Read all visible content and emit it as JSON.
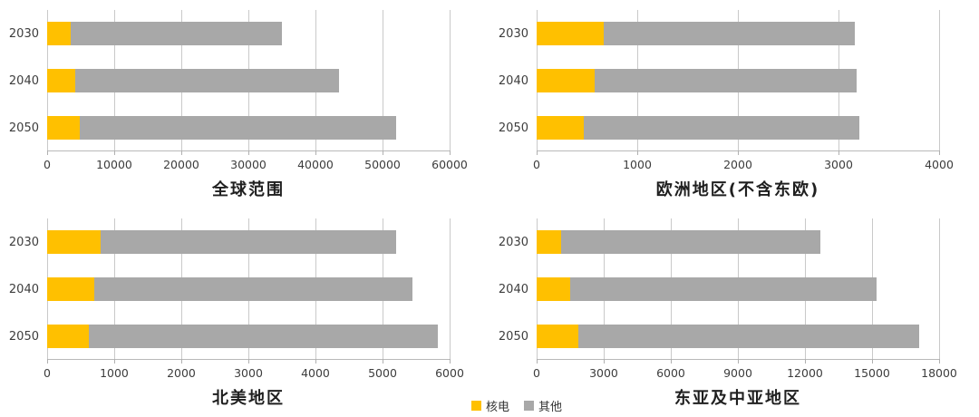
{
  "page": {
    "background": "#ffffff"
  },
  "legend": {
    "items": [
      {
        "key": "nuclear",
        "label": "核电",
        "color": "#FFC000"
      },
      {
        "key": "other",
        "label": "其他",
        "color": "#A8A8A8"
      }
    ]
  },
  "chart_data": [
    {
      "type": "bar",
      "orientation": "horizontal",
      "stacked": true,
      "title": "全球范围",
      "categories": [
        "2030",
        "2040",
        "2050"
      ],
      "series": [
        {
          "name": "核电",
          "key": "nuclear",
          "color": "#FFC000",
          "values": [
            3500,
            4200,
            4900
          ]
        },
        {
          "name": "其他",
          "key": "other",
          "color": "#A8A8A8",
          "values": [
            31500,
            39300,
            47100
          ]
        }
      ],
      "xlim": [
        0,
        60000
      ],
      "xticks": [
        0,
        10000,
        20000,
        30000,
        40000,
        50000,
        60000
      ],
      "grid": true
    },
    {
      "type": "bar",
      "orientation": "horizontal",
      "stacked": true,
      "title": "欧洲地区(不含东欧)",
      "categories": [
        "2030",
        "2040",
        "2050"
      ],
      "series": [
        {
          "name": "核电",
          "key": "nuclear",
          "color": "#FFC000",
          "values": [
            670,
            580,
            470
          ]
        },
        {
          "name": "其他",
          "key": "other",
          "color": "#A8A8A8",
          "values": [
            2490,
            2600,
            2740
          ]
        }
      ],
      "xlim": [
        0,
        4000
      ],
      "xticks": [
        0,
        1000,
        2000,
        3000,
        4000
      ],
      "grid": true
    },
    {
      "type": "bar",
      "orientation": "horizontal",
      "stacked": true,
      "title": "北美地区",
      "categories": [
        "2030",
        "2040",
        "2050"
      ],
      "series": [
        {
          "name": "核电",
          "key": "nuclear",
          "color": "#FFC000",
          "values": [
            800,
            700,
            620
          ]
        },
        {
          "name": "其他",
          "key": "other",
          "color": "#A8A8A8",
          "values": [
            4400,
            4750,
            5200
          ]
        }
      ],
      "xlim": [
        0,
        6000
      ],
      "xticks": [
        0,
        1000,
        2000,
        3000,
        4000,
        5000,
        6000
      ],
      "grid": true
    },
    {
      "type": "bar",
      "orientation": "horizontal",
      "stacked": true,
      "title": "东亚及中亚地区",
      "categories": [
        "2030",
        "2040",
        "2050"
      ],
      "series": [
        {
          "name": "核电",
          "key": "nuclear",
          "color": "#FFC000",
          "values": [
            1080,
            1500,
            1860
          ]
        },
        {
          "name": "其他",
          "key": "other",
          "color": "#A8A8A8",
          "values": [
            11600,
            13700,
            15240
          ]
        }
      ],
      "xlim": [
        0,
        18000
      ],
      "xticks": [
        0,
        3000,
        6000,
        9000,
        12000,
        15000,
        18000
      ],
      "grid": true
    }
  ]
}
